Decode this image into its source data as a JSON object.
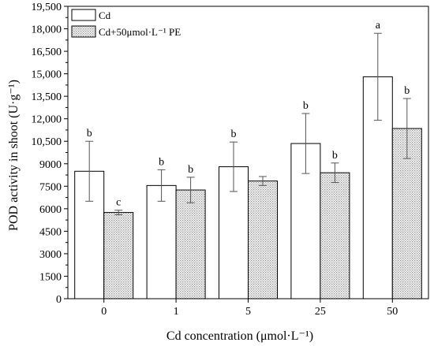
{
  "chart_data": {
    "type": "bar",
    "categories": [
      "0",
      "1",
      "5",
      "25",
      "50"
    ],
    "series": [
      {
        "name": "Cd",
        "values": [
          8500,
          7550,
          8800,
          10350,
          14800
        ],
        "errors": [
          2000,
          1050,
          1650,
          2000,
          2900
        ],
        "labels": [
          "b",
          "b",
          "b",
          "b",
          "a"
        ],
        "fill": "#ffffff"
      },
      {
        "name": "Cd+50μmol·L⁻¹ PE",
        "values": [
          5750,
          7250,
          7850,
          8400,
          11350
        ],
        "errors": [
          150,
          850,
          300,
          650,
          2000
        ],
        "labels": [
          "c",
          "b",
          "",
          "b",
          "b"
        ],
        "fill": "#d4d4d4"
      }
    ],
    "xlabel": "Cd concentration (μmol·L⁻¹)",
    "ylabel": "POD activity in shoot (U·g⁻¹)",
    "ylim": [
      0,
      19500
    ],
    "yticks": [
      0,
      1500,
      3000,
      4500,
      6000,
      7500,
      9000,
      10500,
      12000,
      13500,
      15000,
      16500,
      18000,
      19500
    ],
    "ytick_labels": [
      "0",
      "1500",
      "3000",
      "4500",
      "6000",
      "7500",
      "9000",
      "10,500",
      "12,000",
      "13,500",
      "15,000",
      "16,500",
      "18,000",
      "19,500"
    ],
    "grid": false,
    "legend_position": "top-left"
  }
}
